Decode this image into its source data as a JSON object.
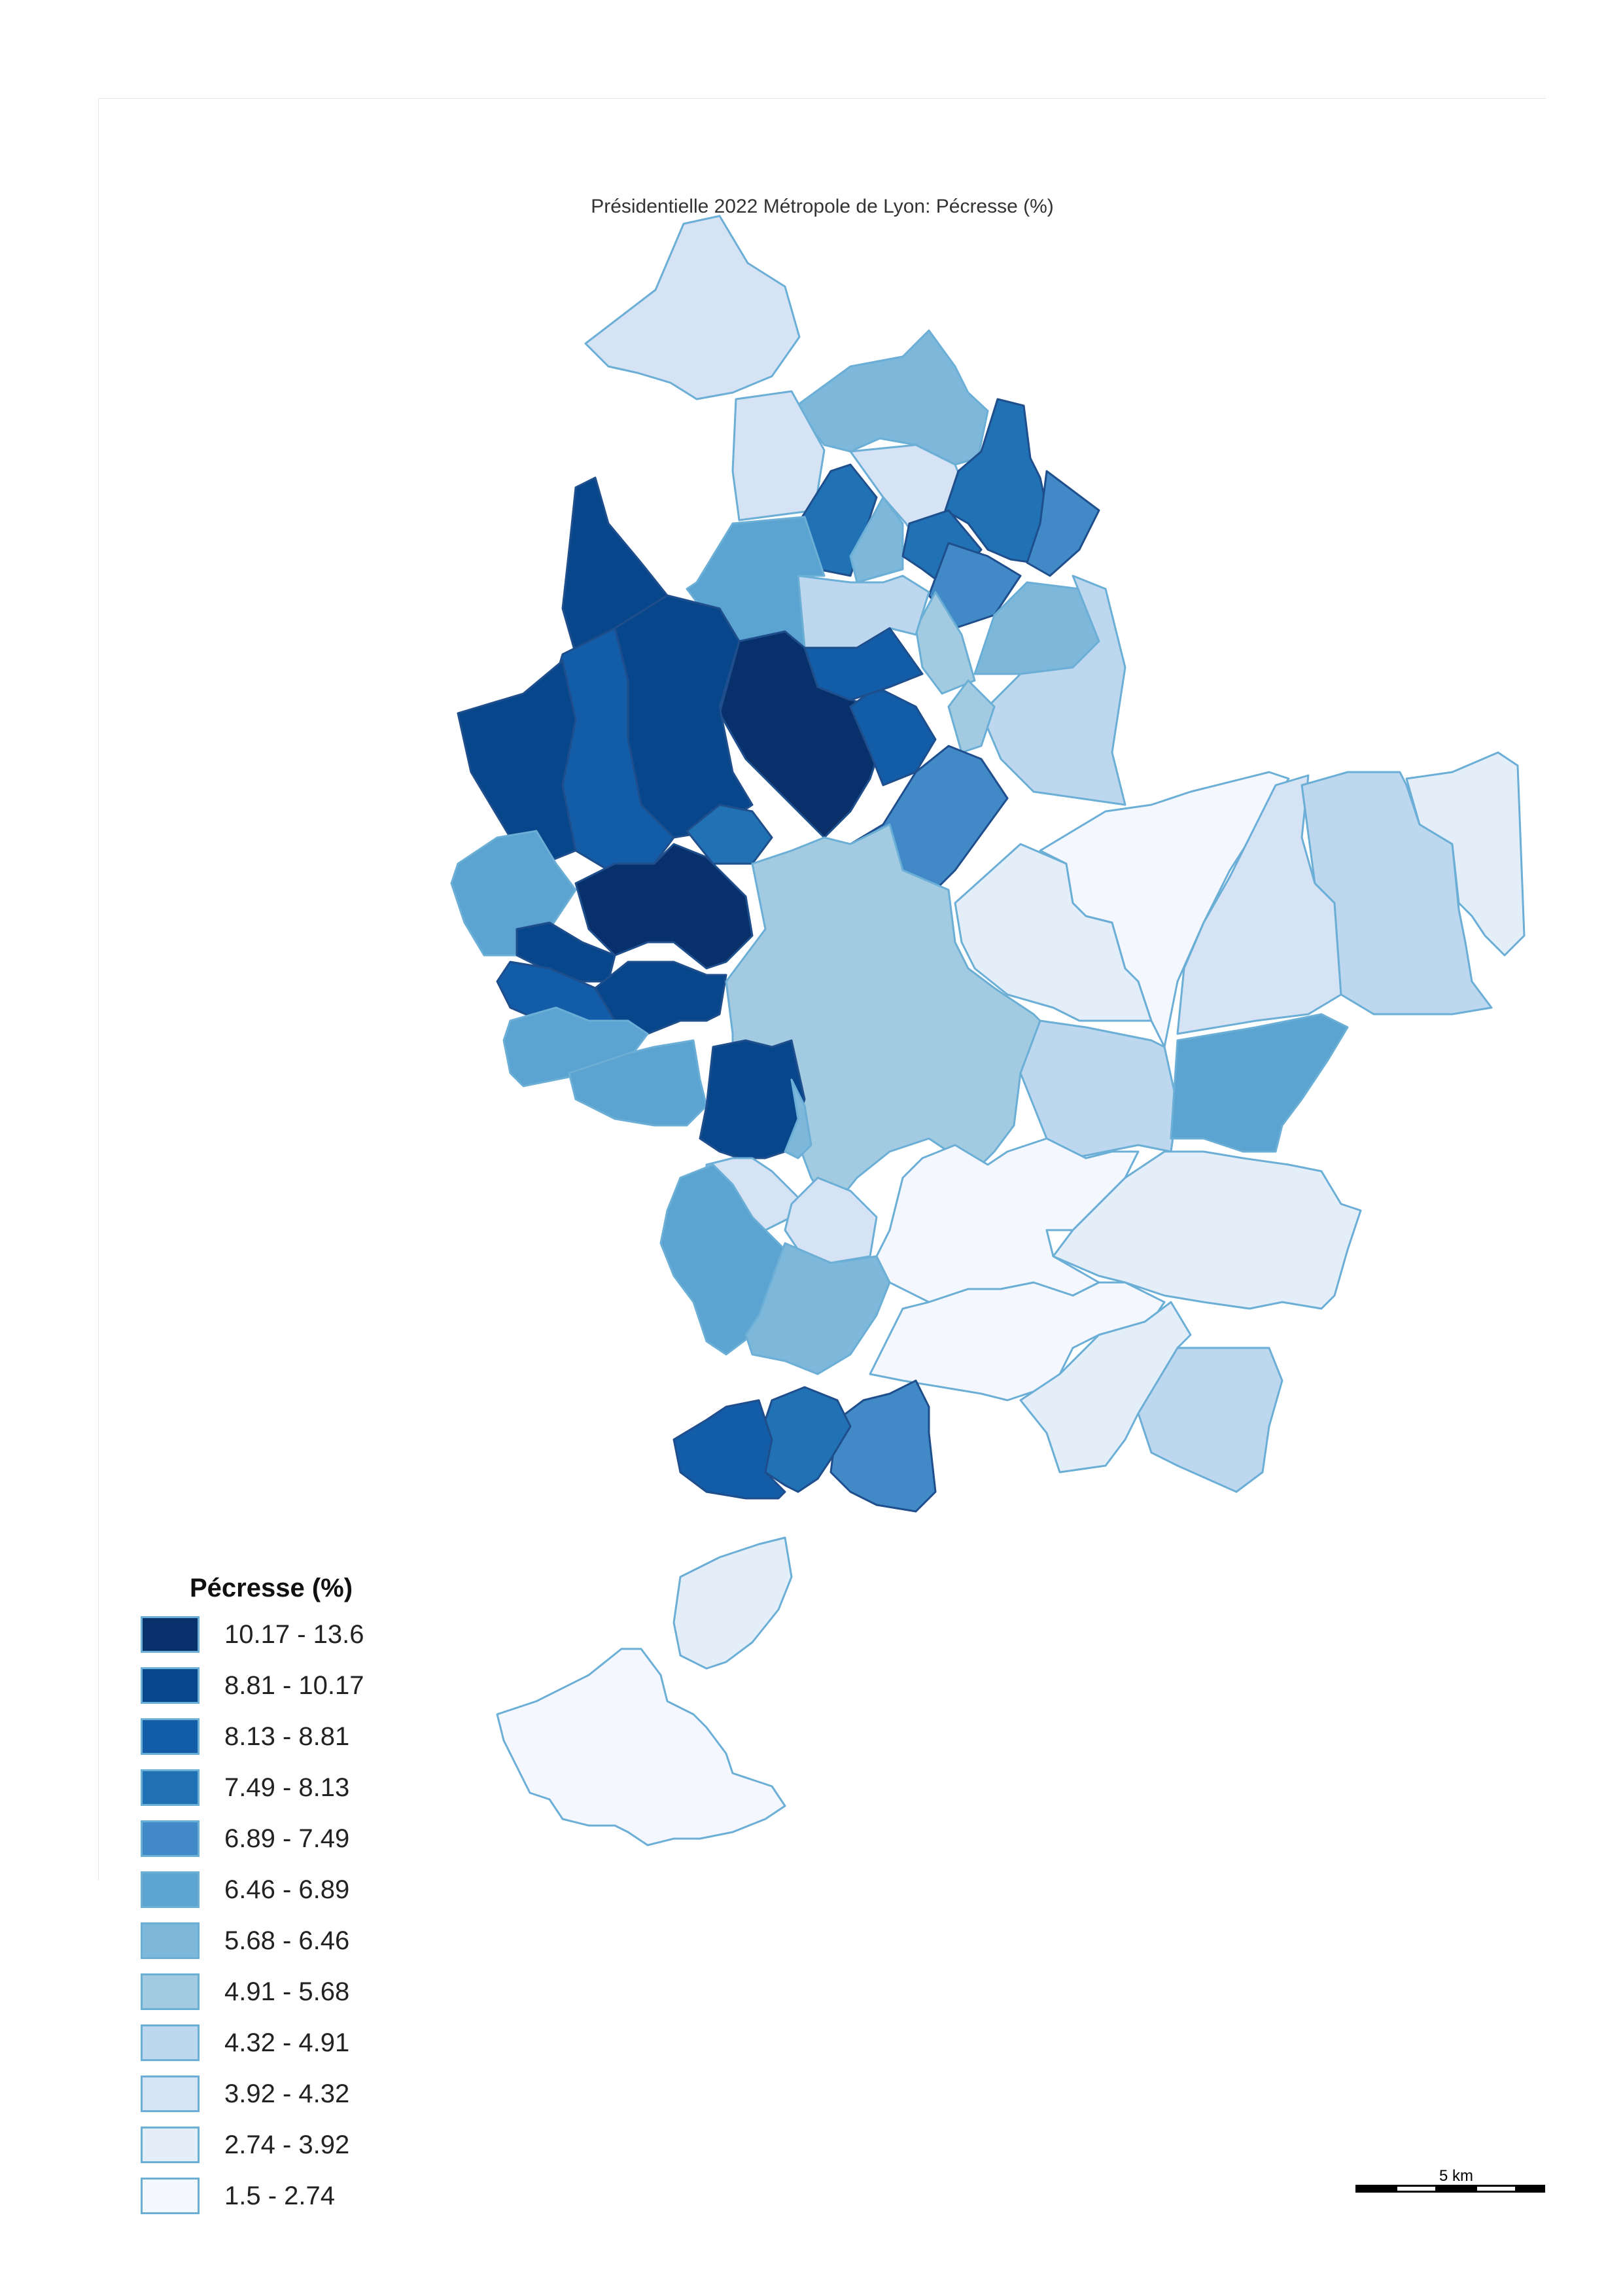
{
  "title": "Présidentielle 2022 Métropole de Lyon: Pécresse (%)",
  "legend": {
    "title": "Pécresse (%)",
    "classes": [
      {
        "label": "10.17 - 13.6",
        "color": "#08306b"
      },
      {
        "label": "8.81 - 10.17",
        "color": "#08468c"
      },
      {
        "label": "8.13 - 8.81",
        "color": "#125ca8"
      },
      {
        "label": "7.49 - 8.13",
        "color": "#2171b5"
      },
      {
        "label": "6.89 - 7.49",
        "color": "#4189c7"
      },
      {
        "label": "6.46 - 6.89",
        "color": "#5ba3d0"
      },
      {
        "label": "5.68 - 6.46",
        "color": "#7db8da"
      },
      {
        "label": "4.91 - 5.68",
        "color": "#a2cbe2"
      },
      {
        "label": "4.32 - 4.91",
        "color": "#bdd7ee"
      },
      {
        "label": "3.92 - 4.32",
        "color": "#d5e3f4"
      },
      {
        "label": "2.74 - 3.92",
        "color": "#e4eef9"
      },
      {
        "label": "1.5 - 2.74",
        "color": "#f4f8fe"
      }
    ]
  },
  "scalebar": {
    "label": "5 km"
  },
  "colors": {
    "border_dark": "#1f4e8c",
    "border_light": "#6baed6"
  }
}
